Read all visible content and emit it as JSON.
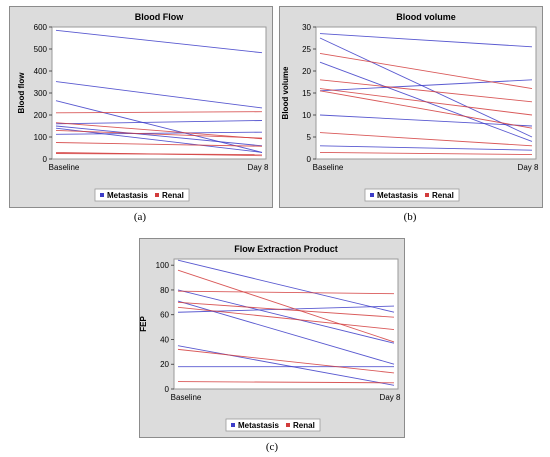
{
  "chart_data": [
    {
      "id": "a",
      "type": "line",
      "title": "Blood Flow",
      "ylabel": "Blood flow",
      "xlabel": "",
      "categories": [
        "Baseline",
        "Day 8"
      ],
      "ylim": [
        0,
        600
      ],
      "yticks": [
        0,
        100,
        200,
        300,
        400,
        500,
        600
      ],
      "grid": false,
      "legend_placement": "bottom",
      "legend": [
        {
          "name": "Metastasis",
          "color": "#3c3cc8"
        },
        {
          "name": "Renal",
          "color": "#d23c3c"
        }
      ],
      "series": [
        {
          "group": "Metastasis",
          "values": [
            585,
            483
          ]
        },
        {
          "group": "Metastasis",
          "values": [
            352,
            232
          ]
        },
        {
          "group": "Metastasis",
          "values": [
            265,
            30
          ]
        },
        {
          "group": "Metastasis",
          "values": [
            160,
            175
          ]
        },
        {
          "group": "Metastasis",
          "values": [
            150,
            60
          ]
        },
        {
          "group": "Metastasis",
          "values": [
            140,
            30
          ]
        },
        {
          "group": "Metastasis",
          "values": [
            112,
            122
          ]
        },
        {
          "group": "Renal",
          "values": [
            210,
            215
          ]
        },
        {
          "group": "Renal",
          "values": [
            165,
            92
          ]
        },
        {
          "group": "Renal",
          "values": [
            130,
            95
          ]
        },
        {
          "group": "Renal",
          "values": [
            75,
            58
          ]
        },
        {
          "group": "Renal",
          "values": [
            30,
            15
          ]
        },
        {
          "group": "Renal",
          "values": [
            25,
            20
          ]
        }
      ]
    },
    {
      "id": "b",
      "type": "line",
      "title": "Blood volume",
      "ylabel": "Blood volume",
      "xlabel": "",
      "categories": [
        "Baseline",
        "Day 8"
      ],
      "ylim": [
        0,
        30
      ],
      "yticks": [
        0,
        5,
        10,
        15,
        20,
        25,
        30
      ],
      "grid": false,
      "legend_placement": "bottom",
      "legend": [
        {
          "name": "Metastasis",
          "color": "#3c3cc8"
        },
        {
          "name": "Renal",
          "color": "#d23c3c"
        }
      ],
      "series": [
        {
          "group": "Metastasis",
          "values": [
            28.5,
            25.5
          ]
        },
        {
          "group": "Metastasis",
          "values": [
            27.5,
            5
          ]
        },
        {
          "group": "Metastasis",
          "values": [
            22,
            4
          ]
        },
        {
          "group": "Metastasis",
          "values": [
            15.5,
            18
          ]
        },
        {
          "group": "Metastasis",
          "values": [
            10,
            7.5
          ]
        },
        {
          "group": "Metastasis",
          "values": [
            3,
            2
          ]
        },
        {
          "group": "Renal",
          "values": [
            24,
            16
          ]
        },
        {
          "group": "Renal",
          "values": [
            18,
            13
          ]
        },
        {
          "group": "Renal",
          "values": [
            16,
            10
          ]
        },
        {
          "group": "Renal",
          "values": [
            15.5,
            7
          ]
        },
        {
          "group": "Renal",
          "values": [
            6,
            3
          ]
        },
        {
          "group": "Renal",
          "values": [
            1.5,
            1
          ]
        }
      ]
    },
    {
      "id": "c",
      "type": "line",
      "title": "Flow Extraction Product",
      "ylabel": "FEP",
      "xlabel": "",
      "categories": [
        "Baseline",
        "Day 8"
      ],
      "ylim": [
        0,
        105
      ],
      "yticks": [
        0,
        20,
        40,
        60,
        80,
        100
      ],
      "grid": false,
      "legend_placement": "bottom",
      "legend": [
        {
          "name": "Metastasis",
          "color": "#3c3cc8"
        },
        {
          "name": "Renal",
          "color": "#d23c3c"
        }
      ],
      "series": [
        {
          "group": "Metastasis",
          "values": [
            104,
            62
          ]
        },
        {
          "group": "Metastasis",
          "values": [
            80,
            37
          ]
        },
        {
          "group": "Metastasis",
          "values": [
            71,
            20
          ]
        },
        {
          "group": "Metastasis",
          "values": [
            62,
            67
          ]
        },
        {
          "group": "Metastasis",
          "values": [
            35,
            3
          ]
        },
        {
          "group": "Metastasis",
          "values": [
            18,
            18
          ]
        },
        {
          "group": "Renal",
          "values": [
            96,
            38
          ]
        },
        {
          "group": "Renal",
          "values": [
            79,
            77
          ]
        },
        {
          "group": "Renal",
          "values": [
            70,
            58
          ]
        },
        {
          "group": "Renal",
          "values": [
            66,
            48
          ]
        },
        {
          "group": "Renal",
          "values": [
            32,
            13
          ]
        },
        {
          "group": "Renal",
          "values": [
            6,
            5
          ]
        }
      ]
    }
  ],
  "captions": {
    "a": "(a)",
    "b": "(b)",
    "c": "(c)"
  }
}
